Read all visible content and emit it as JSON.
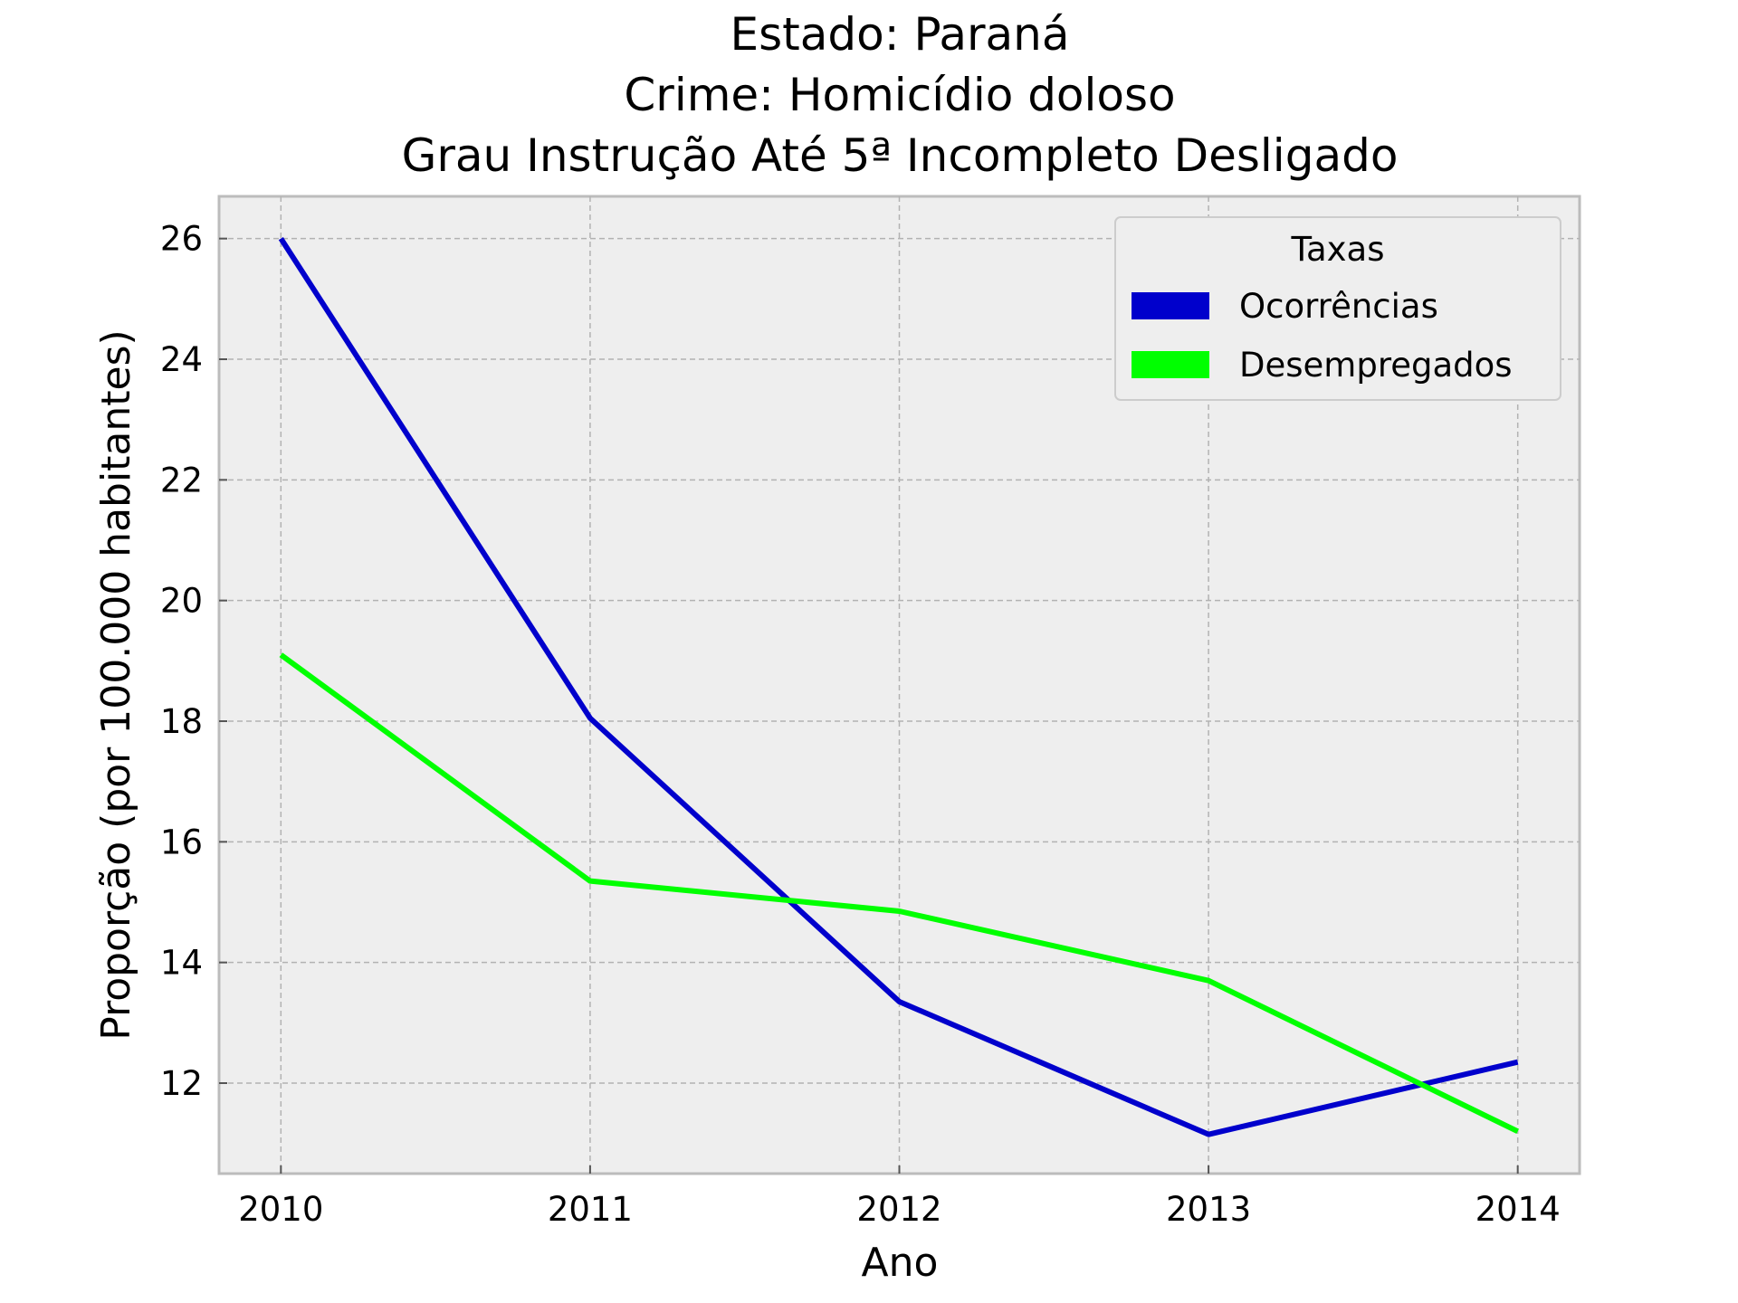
{
  "chart_data": {
    "type": "line",
    "title_lines": [
      "Estado: Paraná",
      "Crime: Homicídio doloso",
      "Grau Instrução  Até 5ª Incompleto   Desligado"
    ],
    "xlabel": "Ano",
    "ylabel": "Proporção (por 100.000 habitantes)",
    "x": [
      2010,
      2011,
      2012,
      2013,
      2014
    ],
    "x_ticks": [
      "2010",
      "2011",
      "2012",
      "2013",
      "2014"
    ],
    "y_ticks": [
      "12",
      "14",
      "16",
      "18",
      "20",
      "22",
      "24",
      "26"
    ],
    "y_tick_values": [
      12,
      14,
      16,
      18,
      20,
      22,
      24,
      26
    ],
    "xlim": [
      2009.8,
      2014.2
    ],
    "ylim": [
      10.5,
      26.7
    ],
    "grid": true,
    "legend": {
      "title": "Taxas",
      "placement": "top-right"
    },
    "series": [
      {
        "name": "Ocorrências",
        "color": "#0000cc",
        "values": [
          26.0,
          18.05,
          13.35,
          11.15,
          12.35
        ]
      },
      {
        "name": "Desempregados",
        "color": "#00ff00",
        "values": [
          19.1,
          15.35,
          14.85,
          13.7,
          11.2
        ]
      }
    ]
  }
}
